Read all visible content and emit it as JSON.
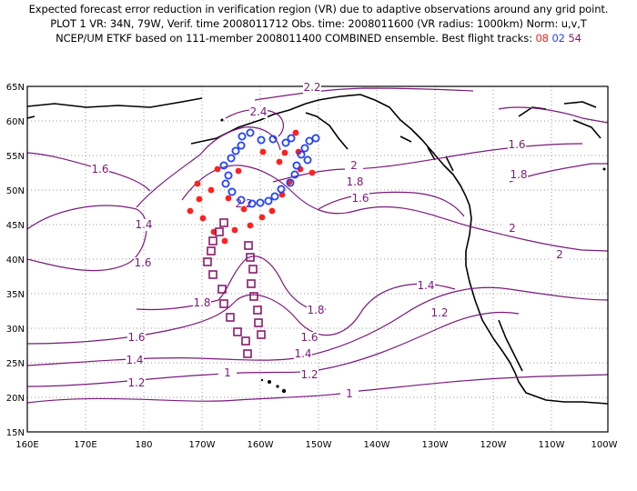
{
  "title": {
    "line1": "Expected forecast error reduction in verification region (VR) due to adaptive observations around any grid point.",
    "line2": "PLOT 1 VR: 34N, 79W, Verif. time 2008011712 Obs. time: 2008011600 (VR radius: 1000km) Norm: u,v,T",
    "line3_prefix": "NCEP/UM ETKF based on 111-member 2008011400 COMBINED ensemble.  Best flight tracks:",
    "track_red": "08",
    "track_blue": "02",
    "track_purple": "54"
  },
  "colors": {
    "contour": "#7a1a7a",
    "track_red": "#ff2020",
    "track_blue": "#2040ff",
    "track_purple": "#8b1a6b",
    "grid": "#9a9a9a"
  },
  "axes": {
    "lon_ticks": [
      "160E",
      "170E",
      "180",
      "170W",
      "160W",
      "150W",
      "140W",
      "130W",
      "120W",
      "110W",
      "100W"
    ],
    "lat_ticks": [
      "15N",
      "20N",
      "25N",
      "30N",
      "35N",
      "40N",
      "45N",
      "50N",
      "55N",
      "60N",
      "65N"
    ]
  },
  "contour_labels": [
    "2.2",
    "2.4",
    "2.2",
    "2",
    "1.8",
    "1.6",
    "1.6",
    "1.8",
    "1.6",
    "1.4",
    "1.6",
    "2",
    "2",
    "1.8",
    "1.4",
    "1.2",
    "1.8",
    "1.6",
    "1.4",
    "1.6",
    "1.4",
    "1.2",
    "1.2",
    "1",
    "1"
  ]
}
